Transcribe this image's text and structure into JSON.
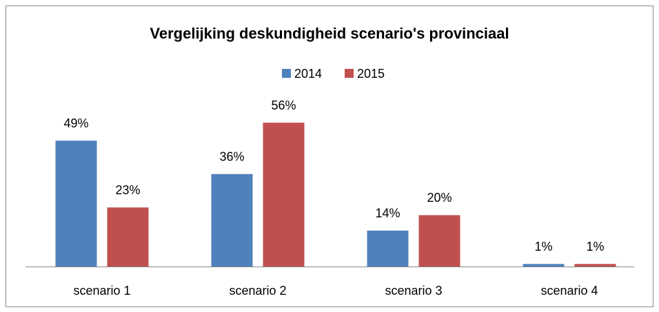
{
  "chart_data": {
    "type": "bar",
    "title": "Vergelijking deskundigheid scenario's provinciaal",
    "categories": [
      "scenario 1",
      "scenario 2",
      "scenario 3",
      "scenario 4"
    ],
    "series": [
      {
        "name": "2014",
        "color": "#4f81bd",
        "values": [
          49,
          36,
          14,
          1
        ],
        "value_labels": [
          "49%",
          "36%",
          "14%",
          "1%"
        ]
      },
      {
        "name": "2015",
        "color": "#c0504d",
        "values": [
          23,
          56,
          20,
          1
        ],
        "value_labels": [
          "23%",
          "56%",
          "20%",
          "1%"
        ]
      }
    ],
    "legend": "top"
  }
}
